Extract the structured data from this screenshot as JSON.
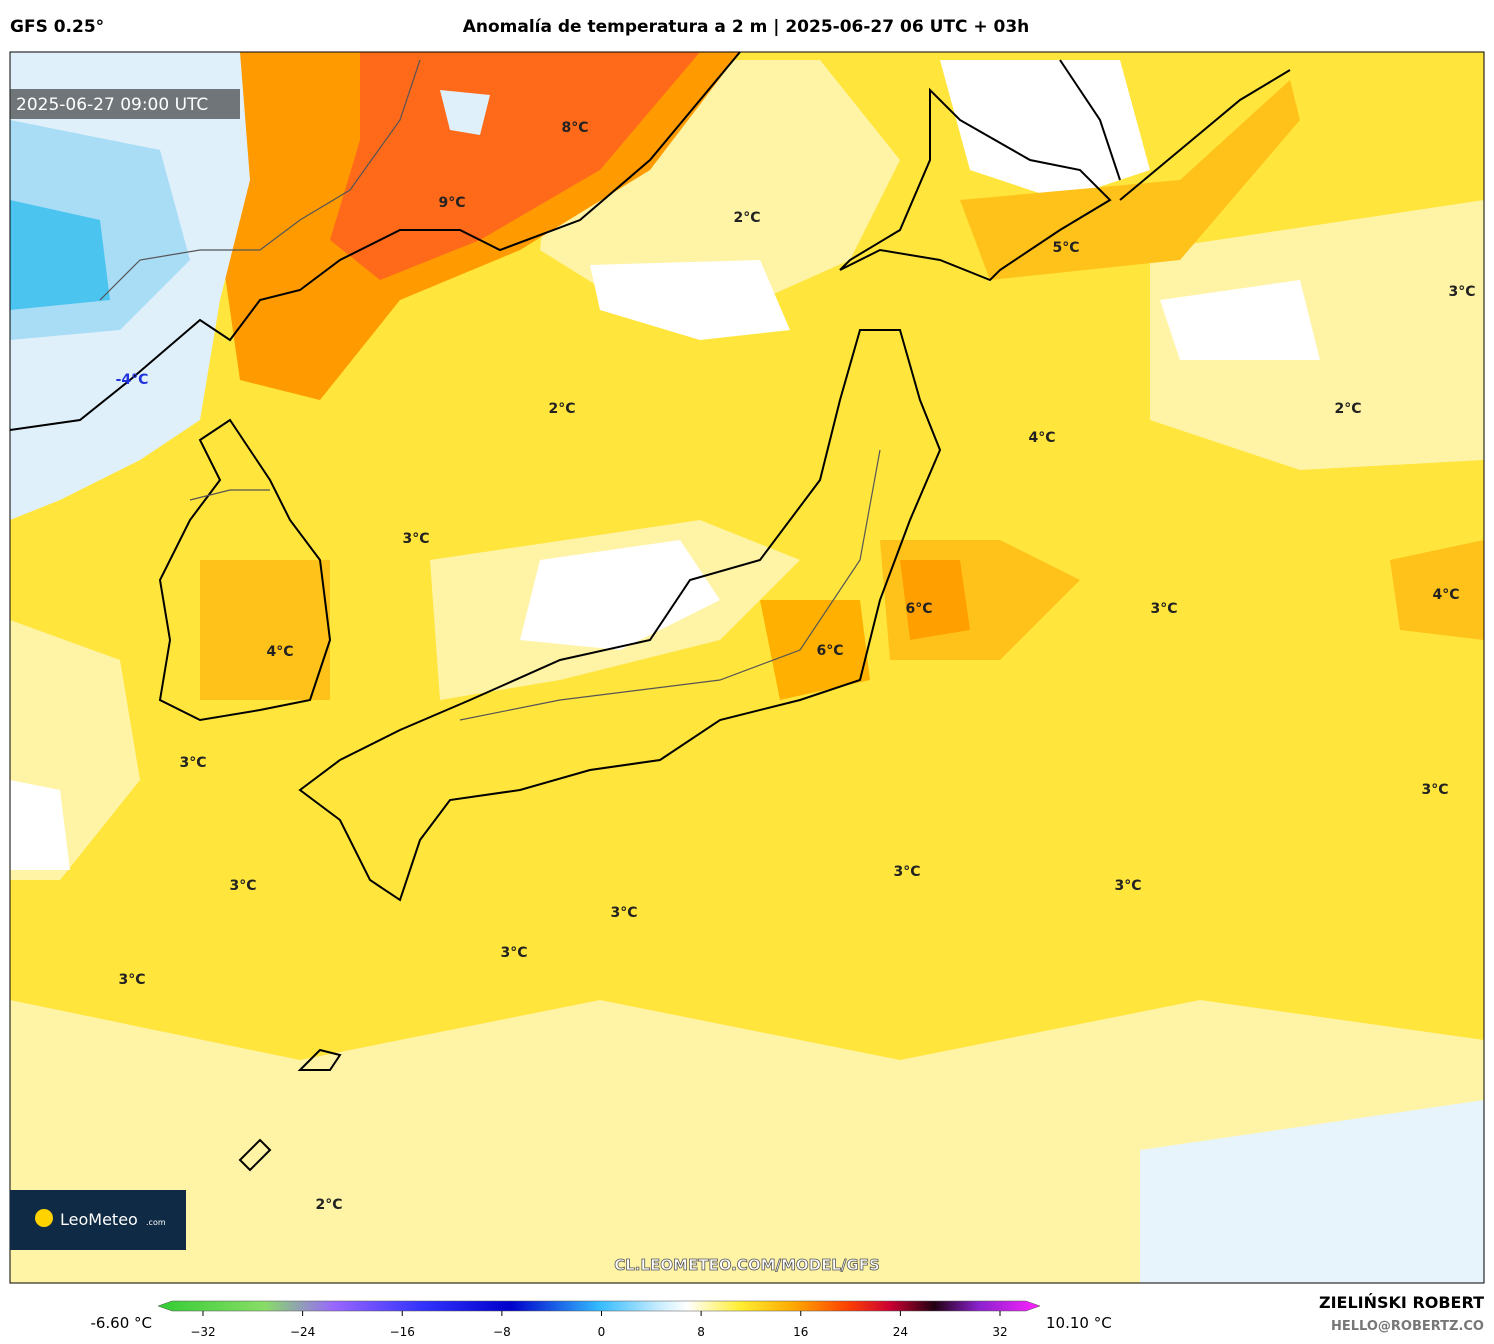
{
  "header": {
    "model": "GFS 0.25°",
    "title": "Anomalía de temperatura a 2 m | 2025-06-27 06 UTC + 03h"
  },
  "map": {
    "valid_time": "2025-06-27 09:00 UTC",
    "labels": [
      "8°C",
      "9°C",
      "2°C",
      "-4°C",
      "2°C",
      "3°C",
      "4°C",
      "3°C",
      "2°C",
      "4°C",
      "5°C",
      "3°C",
      "6°C",
      "6°C",
      "3°C",
      "4°C",
      "3°C",
      "3°C",
      "3°C",
      "3°C",
      "3°C",
      "3°C",
      "3°C",
      "2°C"
    ],
    "logo": {
      "name": "LeoMeteo",
      "suffix": ".com"
    },
    "watermark": "CL.LEOMETEO.COM/MODEL/GFS"
  },
  "colorbar": {
    "min_label": "-6.60 °C",
    "max_label": "10.10 °C",
    "ticks": [
      {
        "value": -32,
        "label": "−32"
      },
      {
        "value": -24,
        "label": "−24"
      },
      {
        "value": -16,
        "label": "−16"
      },
      {
        "value": -8,
        "label": "−8"
      },
      0,
      8,
      16,
      24,
      32
    ]
  },
  "footer": {
    "author": "ZIELIŃSKI ROBERT",
    "email": "HELLO@ROBERTZ.CO"
  }
}
